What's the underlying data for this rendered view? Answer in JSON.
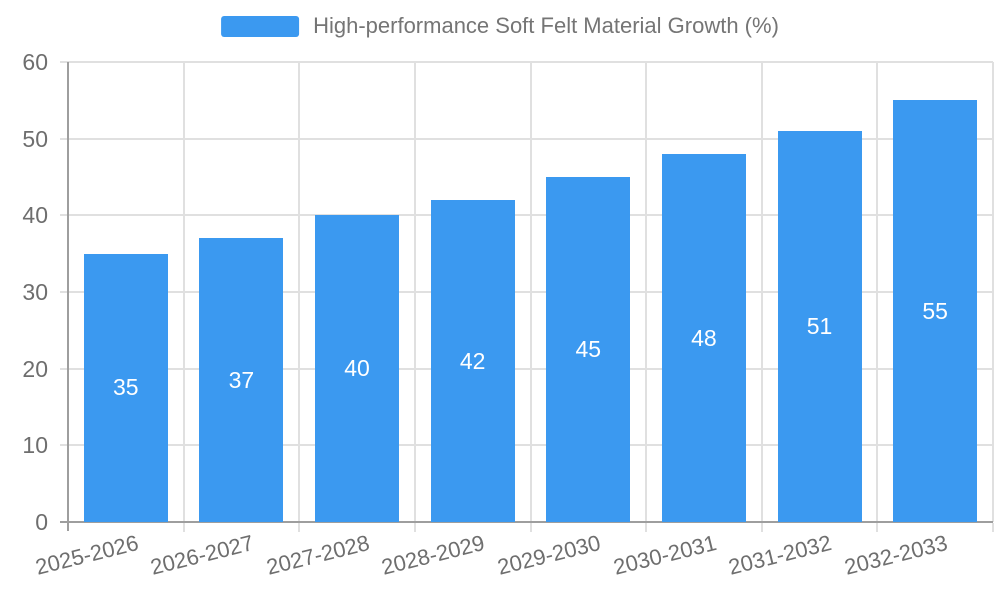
{
  "legend": {
    "label": "High-performance Soft Felt Material Growth (%)"
  },
  "chart_data": {
    "type": "bar",
    "title": "",
    "xlabel": "",
    "ylabel": "",
    "categories": [
      "2025-2026",
      "2026-2027",
      "2027-2028",
      "2028-2029",
      "2029-2030",
      "2030-2031",
      "2031-2032",
      "2032-2033"
    ],
    "values": [
      35,
      37,
      40,
      42,
      45,
      48,
      51,
      55
    ],
    "series_name": "High-performance Soft Felt Material Growth (%)",
    "ylim": [
      0,
      60
    ],
    "yticks": [
      0,
      10,
      20,
      30,
      40,
      50,
      60
    ],
    "grid": true,
    "legend_position": "top-center",
    "value_labels": "inside-center"
  },
  "colors": {
    "bar": "#3B99F0",
    "grid": "#E0E0E0",
    "axis": "#9E9E9E",
    "tick_text": "#6E6E6E",
    "legend_text": "#757575",
    "value_text": "#FFFFFF",
    "background": "#FFFFFF"
  }
}
